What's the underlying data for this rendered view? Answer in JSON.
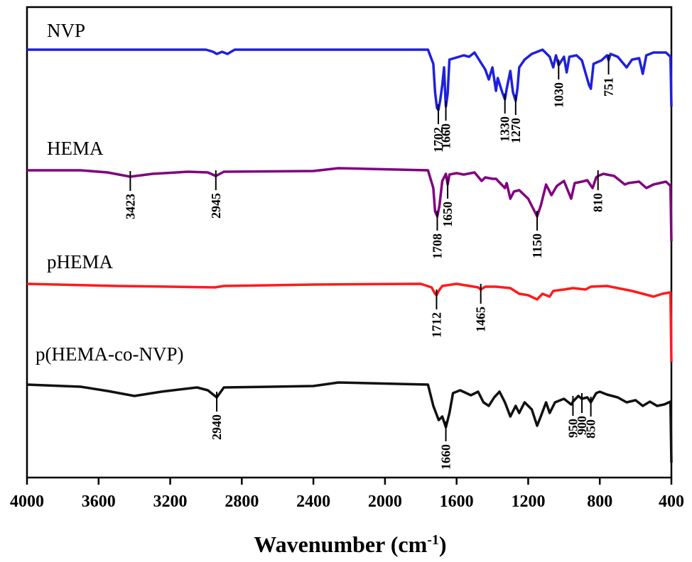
{
  "chart_data": {
    "type": "line",
    "title": "",
    "xlabel": "Wavenumber (cm",
    "xlabel_sup": "-1",
    "xlabel_close": ")",
    "ylabel": "",
    "xlim": [
      4000,
      400
    ],
    "x_ticks": [
      "4000",
      "3600",
      "3200",
      "2800",
      "2400",
      "2000",
      "1600",
      "1200",
      "800",
      "400"
    ],
    "grid": false,
    "legend": "none",
    "y_units": "stacked transmittance (arbitrary)",
    "series": [
      {
        "name": "NVP",
        "color": "#1f1fe0",
        "baseline": 70,
        "points": [
          [
            4000,
            0
          ],
          [
            3000,
            0
          ],
          [
            2960,
            -3
          ],
          [
            2940,
            -6
          ],
          [
            2910,
            -3
          ],
          [
            2880,
            -6
          ],
          [
            2840,
            0
          ],
          [
            1760,
            0
          ],
          [
            1730,
            -20
          ],
          [
            1720,
            -60
          ],
          [
            1710,
            -82
          ],
          [
            1702,
            -85
          ],
          [
            1692,
            -72
          ],
          [
            1680,
            -50
          ],
          [
            1670,
            -25
          ],
          [
            1662,
            -70
          ],
          [
            1660,
            -80
          ],
          [
            1650,
            -62
          ],
          [
            1640,
            -14
          ],
          [
            1560,
            -8
          ],
          [
            1530,
            -10
          ],
          [
            1500,
            -4
          ],
          [
            1480,
            -12
          ],
          [
            1440,
            -28
          ],
          [
            1420,
            -42
          ],
          [
            1400,
            -25
          ],
          [
            1380,
            -58
          ],
          [
            1370,
            -40
          ],
          [
            1345,
            -60
          ],
          [
            1330,
            -70
          ],
          [
            1320,
            -55
          ],
          [
            1300,
            -30
          ],
          [
            1285,
            -60
          ],
          [
            1270,
            -72
          ],
          [
            1260,
            -55
          ],
          [
            1250,
            -25
          ],
          [
            1220,
            -14
          ],
          [
            1180,
            -6
          ],
          [
            1120,
            0
          ],
          [
            1080,
            -10
          ],
          [
            1060,
            -25
          ],
          [
            1045,
            -8
          ],
          [
            1030,
            -22
          ],
          [
            1000,
            -10
          ],
          [
            985,
            -32
          ],
          [
            970,
            -10
          ],
          [
            930,
            -8
          ],
          [
            900,
            -15
          ],
          [
            860,
            -50
          ],
          [
            850,
            -55
          ],
          [
            835,
            -20
          ],
          [
            790,
            -15
          ],
          [
            760,
            -8
          ],
          [
            751,
            -15
          ],
          [
            740,
            -6
          ],
          [
            700,
            -10
          ],
          [
            650,
            -25
          ],
          [
            620,
            -14
          ],
          [
            580,
            -12
          ],
          [
            560,
            -34
          ],
          [
            540,
            -8
          ],
          [
            500,
            -4
          ],
          [
            430,
            -4
          ],
          [
            405,
            -10
          ],
          [
            400,
            -80
          ]
        ],
        "peaks": [
          {
            "wavenumber": "1702",
            "at": 1702
          },
          {
            "wavenumber": "1660",
            "at": 1660
          },
          {
            "wavenumber": "1330",
            "at": 1330
          },
          {
            "wavenumber": "1270",
            "at": 1270
          },
          {
            "wavenumber": "1030",
            "at": 1030
          },
          {
            "wavenumber": "751",
            "at": 751
          }
        ]
      },
      {
        "name": "HEMA",
        "color": "#800080",
        "baseline": 240,
        "points": [
          [
            4000,
            0
          ],
          [
            3700,
            0
          ],
          [
            3550,
            -3
          ],
          [
            3423,
            -9
          ],
          [
            3300,
            -5
          ],
          [
            3100,
            -2
          ],
          [
            2990,
            -3
          ],
          [
            2945,
            -8
          ],
          [
            2900,
            -2
          ],
          [
            2400,
            -1
          ],
          [
            2260,
            3
          ],
          [
            1760,
            0
          ],
          [
            1730,
            -25
          ],
          [
            1720,
            -58
          ],
          [
            1708,
            -65
          ],
          [
            1696,
            -50
          ],
          [
            1680,
            -15
          ],
          [
            1660,
            -5
          ],
          [
            1650,
            -20
          ],
          [
            1640,
            -6
          ],
          [
            1600,
            -4
          ],
          [
            1560,
            -6
          ],
          [
            1500,
            -3
          ],
          [
            1460,
            -15
          ],
          [
            1440,
            -10
          ],
          [
            1400,
            -12
          ],
          [
            1380,
            -12
          ],
          [
            1330,
            -25
          ],
          [
            1320,
            -18
          ],
          [
            1300,
            -40
          ],
          [
            1280,
            -30
          ],
          [
            1250,
            -28
          ],
          [
            1200,
            -40
          ],
          [
            1170,
            -55
          ],
          [
            1150,
            -65
          ],
          [
            1130,
            -50
          ],
          [
            1100,
            -20
          ],
          [
            1070,
            -35
          ],
          [
            1040,
            -22
          ],
          [
            1000,
            -15
          ],
          [
            960,
            -40
          ],
          [
            940,
            -18
          ],
          [
            900,
            -16
          ],
          [
            870,
            -14
          ],
          [
            840,
            -25
          ],
          [
            820,
            -10
          ],
          [
            810,
            -8
          ],
          [
            780,
            -5
          ],
          [
            720,
            -8
          ],
          [
            660,
            -20
          ],
          [
            640,
            -18
          ],
          [
            580,
            -16
          ],
          [
            540,
            -25
          ],
          [
            500,
            -20
          ],
          [
            430,
            -16
          ],
          [
            405,
            -22
          ],
          [
            400,
            -100
          ]
        ],
        "peaks": [
          {
            "wavenumber": "3423",
            "at": 3423
          },
          {
            "wavenumber": "2945",
            "at": 2945
          },
          {
            "wavenumber": "1708",
            "at": 1708
          },
          {
            "wavenumber": "1650",
            "at": 1650
          },
          {
            "wavenumber": "1150",
            "at": 1150
          },
          {
            "wavenumber": "810",
            "at": 810
          }
        ]
      },
      {
        "name": "pHEMA",
        "color": "#ff1a1a",
        "baseline": 400,
        "points": [
          [
            4000,
            0
          ],
          [
            3500,
            -3
          ],
          [
            3200,
            -4
          ],
          [
            2950,
            -5
          ],
          [
            2900,
            -3
          ],
          [
            2400,
            -1
          ],
          [
            1800,
            0
          ],
          [
            1740,
            -5
          ],
          [
            1720,
            -14
          ],
          [
            1712,
            -16
          ],
          [
            1700,
            -10
          ],
          [
            1680,
            -3
          ],
          [
            1600,
            0
          ],
          [
            1480,
            -5
          ],
          [
            1465,
            -8
          ],
          [
            1440,
            -4
          ],
          [
            1380,
            -4
          ],
          [
            1300,
            -6
          ],
          [
            1250,
            -14
          ],
          [
            1200,
            -16
          ],
          [
            1150,
            -22
          ],
          [
            1120,
            -14
          ],
          [
            1080,
            -18
          ],
          [
            1060,
            -10
          ],
          [
            1000,
            -8
          ],
          [
            950,
            -6
          ],
          [
            880,
            -8
          ],
          [
            850,
            -4
          ],
          [
            760,
            -3
          ],
          [
            700,
            -6
          ],
          [
            620,
            -10
          ],
          [
            560,
            -14
          ],
          [
            500,
            -18
          ],
          [
            450,
            -14
          ],
          [
            405,
            -12
          ],
          [
            400,
            -110
          ]
        ],
        "peaks": [
          {
            "wavenumber": "1712",
            "at": 1712
          },
          {
            "wavenumber": "1465",
            "at": 1465
          }
        ]
      },
      {
        "name": "p(HEMA-co-NVP)",
        "color": "#111111",
        "baseline": 542,
        "points": [
          [
            4000,
            0
          ],
          [
            3700,
            -3
          ],
          [
            3550,
            -9
          ],
          [
            3400,
            -16
          ],
          [
            3250,
            -10
          ],
          [
            3050,
            -4
          ],
          [
            2990,
            -8
          ],
          [
            2940,
            -18
          ],
          [
            2900,
            -4
          ],
          [
            2400,
            -2
          ],
          [
            2260,
            3
          ],
          [
            1760,
            0
          ],
          [
            1730,
            -30
          ],
          [
            1700,
            -50
          ],
          [
            1680,
            -45
          ],
          [
            1660,
            -60
          ],
          [
            1640,
            -40
          ],
          [
            1620,
            -12
          ],
          [
            1580,
            -8
          ],
          [
            1520,
            -15
          ],
          [
            1480,
            -10
          ],
          [
            1450,
            -25
          ],
          [
            1420,
            -30
          ],
          [
            1390,
            -18
          ],
          [
            1360,
            -10
          ],
          [
            1330,
            -25
          ],
          [
            1300,
            -45
          ],
          [
            1270,
            -30
          ],
          [
            1250,
            -40
          ],
          [
            1220,
            -25
          ],
          [
            1180,
            -35
          ],
          [
            1150,
            -58
          ],
          [
            1130,
            -45
          ],
          [
            1100,
            -25
          ],
          [
            1080,
            -40
          ],
          [
            1050,
            -25
          ],
          [
            1000,
            -20
          ],
          [
            960,
            -28
          ],
          [
            950,
            -24
          ],
          [
            920,
            -16
          ],
          [
            900,
            -20
          ],
          [
            870,
            -18
          ],
          [
            850,
            -25
          ],
          [
            820,
            -12
          ],
          [
            800,
            -10
          ],
          [
            760,
            -14
          ],
          [
            700,
            -18
          ],
          [
            650,
            -25
          ],
          [
            600,
            -22
          ],
          [
            560,
            -30
          ],
          [
            520,
            -24
          ],
          [
            480,
            -30
          ],
          [
            440,
            -28
          ],
          [
            405,
            -24
          ],
          [
            400,
            -110
          ]
        ],
        "peaks": [
          {
            "wavenumber": "2940",
            "at": 2940
          },
          {
            "wavenumber": "1660",
            "at": 1660
          },
          {
            "wavenumber": "950",
            "at": 950
          },
          {
            "wavenumber": "900",
            "at": 900
          },
          {
            "wavenumber": "850",
            "at": 850
          }
        ]
      }
    ]
  }
}
